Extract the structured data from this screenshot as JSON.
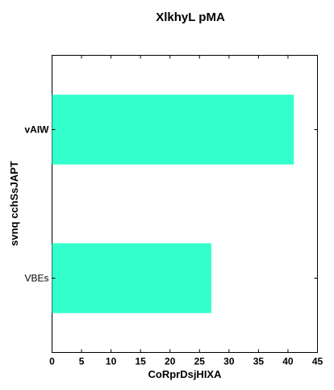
{
  "chart_data": {
    "type": "bar",
    "orientation": "horizontal",
    "title": "XlkhyL  pMA",
    "xlabel": "CoRprDsjHIXA",
    "ylabel": "svnq cchSsJAPT",
    "categories": [
      "VBEs",
      "vAIW"
    ],
    "values": [
      27,
      41
    ],
    "xlim": [
      0,
      45
    ],
    "xticks": [
      0,
      5,
      10,
      15,
      20,
      25,
      30,
      35,
      40,
      45
    ],
    "bar_color": "#33ffcc",
    "grid": false,
    "legend": "none"
  }
}
